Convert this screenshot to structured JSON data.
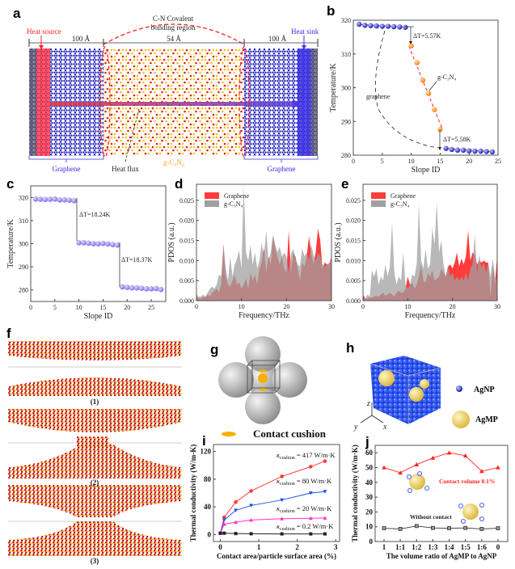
{
  "panels": {
    "a": {
      "label": "a",
      "heat_source": "Heat source",
      "heat_sink": "Heat sink",
      "region_title_1": "C-N Covalent",
      "region_title_2": "bonding region",
      "left_len": "100 Å",
      "mid_len": "54 Å",
      "right_len": "100 Å",
      "graphene_left": "Graphene",
      "graphene_right": "Graphene",
      "heat_flux": "Heat flux",
      "gc3n4": "g-C₃N₄"
    },
    "b": {
      "label": "b",
      "dt1": "ΔT=5.57K",
      "dt2": "ΔT=5.58K",
      "ann_gc3n4": "g-C₃N₄",
      "ann_graphene": "graphene"
    },
    "c": {
      "label": "c",
      "dt1": "ΔT=18.24K",
      "dt2": "ΔT=18.37K"
    },
    "d": {
      "label": "d"
    },
    "e": {
      "label": "e"
    },
    "f": {
      "label": "f",
      "captions": [
        "(1)",
        "(2)",
        "(3)"
      ]
    },
    "g": {
      "label": "g",
      "legend": "Contact cushion"
    },
    "h": {
      "label": "h",
      "legend_np": "AgNP",
      "legend_mp": "AgMP",
      "axis_x": "x",
      "axis_y": "y",
      "axis_z": "z"
    },
    "i": {
      "label": "i",
      "kappa": "κ",
      "sub": "cushion"
    },
    "j": {
      "label": "j",
      "ann_contact": "Contact volume 0.1%",
      "ann_without": "Without contact"
    }
  },
  "colors": {
    "graphene": "#2222cc",
    "gc3n4": "#f5a623",
    "red": "#ff3b3b",
    "gray": "#a0a0a0",
    "blue_series": "#2255ee",
    "magenta": "#ff33cc",
    "black": "#222222"
  },
  "chart_data": [
    {
      "panel": "b",
      "type": "scatter",
      "xlabel": "Slope  ID",
      "ylabel": "Temperature/K",
      "xlim": [
        0,
        25
      ],
      "ylim": [
        280,
        320
      ],
      "xticks": [
        0,
        5,
        10,
        15,
        20,
        25
      ],
      "yticks": [
        280,
        290,
        300,
        310,
        320
      ],
      "series": [
        {
          "x": [
            1,
            2,
            3,
            4,
            5,
            6,
            7,
            8,
            9
          ],
          "y": [
            318.8,
            318.5,
            318.4,
            318.3,
            318.2,
            318.2,
            318.1,
            318.0,
            317.9
          ],
          "color": "#2222cc"
        },
        {
          "x": [
            10,
            11,
            12,
            13,
            14,
            15
          ],
          "y": [
            312.4,
            307.4,
            302.2,
            298.3,
            293.5,
            287.6
          ],
          "color": "#f5a623"
        },
        {
          "x": [
            16,
            17,
            18,
            19,
            20,
            21,
            22,
            23,
            24
          ],
          "y": [
            282.0,
            281.7,
            281.5,
            281.5,
            281.3,
            281.2,
            281.2,
            281.1,
            281.0
          ],
          "color": "#2222cc"
        }
      ]
    },
    {
      "panel": "c",
      "type": "scatter",
      "xlabel": "Slope ID",
      "ylabel": "Temperature/K",
      "xlim": [
        0,
        28
      ],
      "ylim": [
        275,
        325
      ],
      "xticks": [
        0,
        5,
        10,
        15,
        20,
        25
      ],
      "yticks": [
        280,
        290,
        300,
        310,
        320
      ],
      "series": [
        {
          "x": [
            1,
            2,
            3,
            4,
            5,
            6,
            7,
            8,
            9
          ],
          "y": [
            319.3,
            319.2,
            319.1,
            319.2,
            319.3,
            318.9,
            319.0,
            318.8,
            318.6
          ]
        },
        {
          "x": [
            10,
            11,
            12,
            13,
            14,
            15,
            16,
            17,
            18
          ],
          "y": [
            300.4,
            300.4,
            300.2,
            300.0,
            300.0,
            300.1,
            299.9,
            299.6,
            299.4
          ]
        },
        {
          "x": [
            19,
            20,
            21,
            22,
            23,
            24,
            25,
            26,
            27
          ],
          "y": [
            281.3,
            281.1,
            280.9,
            280.9,
            280.7,
            280.5,
            280.5,
            280.6,
            280.2
          ]
        }
      ]
    },
    {
      "panel": "d",
      "type": "area",
      "xlabel": "Frequency/THz",
      "ylabel": "PDOS (a.u.)",
      "xlim": [
        0,
        30
      ],
      "ylim": [
        0,
        0.029
      ],
      "xticks": [
        0,
        10,
        20,
        30
      ],
      "yticks": [
        0.0,
        0.005,
        0.01,
        0.015,
        0.02,
        0.025
      ],
      "legend": "top-left",
      "x_step": 0.5,
      "series": [
        {
          "name": "Graphene",
          "color": "#ff3b3b",
          "values": [
            0.001,
            0.0005,
            0.0005,
            0.001,
            0.0008,
            0.0015,
            0.001,
            0.002,
            0.0025,
            0.003,
            0.002,
            0.004,
            0.014,
            0.006,
            0.004,
            0.0035,
            0.005,
            0.0065,
            0.004,
            0.0045,
            0.003,
            0.004,
            0.0055,
            0.003,
            0.007,
            0.005,
            0.0065,
            0.004,
            0.008,
            0.0095,
            0.013,
            0.007,
            0.011,
            0.009,
            0.016,
            0.013,
            0.011,
            0.009,
            0.011,
            0.008,
            0.007,
            0.0175,
            0.007,
            0.012,
            0.011,
            0.008,
            0.005,
            0.0095,
            0.0085,
            0.011,
            0.016,
            0.012,
            0.009,
            0.012,
            0.018,
            0.015,
            0.008,
            0.0095,
            0.009,
            0.009,
            0.011
          ]
        },
        {
          "name": "g-C₃N₄",
          "color": "#a0a0a0",
          "values": [
            0.0015,
            0.001,
            0.001,
            0.0015,
            0.001,
            0.002,
            0.003,
            0.0035,
            0.003,
            0.004,
            0.0065,
            0.006,
            0.014,
            0.008,
            0.005,
            0.011,
            0.006,
            0.009,
            0.0105,
            0.0125,
            0.008,
            0.029,
            0.012,
            0.01,
            0.014,
            0.009,
            0.012,
            0.008,
            0.01,
            0.0145,
            0.011,
            0.0175,
            0.01,
            0.012,
            0.0165,
            0.014,
            0.012,
            0.0135,
            0.011,
            0.012,
            0.011,
            0.007,
            0.0115,
            0.013,
            0.0105,
            0.009,
            0.0085,
            0.013,
            0.011,
            0.012,
            0.01,
            0.014,
            0.0115,
            0.01,
            0.012,
            0.011,
            0.009,
            0.0085,
            0.009,
            0.0095,
            0.01
          ]
        }
      ]
    },
    {
      "panel": "e",
      "type": "area",
      "xlabel": "Frequency/THz",
      "ylabel": "PDOS (a.u.)",
      "xlim": [
        0,
        30
      ],
      "ylim": [
        0,
        0.029
      ],
      "xticks": [
        0,
        10,
        20,
        30
      ],
      "yticks": [
        0.0,
        0.005,
        0.01,
        0.015,
        0.02,
        0.025
      ],
      "legend": "top-left",
      "x_step": 0.5,
      "series": [
        {
          "name": "Graphene",
          "color": "#ff3b3b",
          "values": [
            0.0015,
            0.0005,
            0.0005,
            0.0008,
            0.0007,
            0.001,
            0.0012,
            0.001,
            0.0015,
            0.002,
            0.0012,
            0.0015,
            0.002,
            0.0015,
            0.001,
            0.002,
            0.0025,
            0.002,
            0.002,
            0.003,
            0.006,
            0.004,
            0.0045,
            0.003,
            0.004,
            0.006,
            0.009,
            0.005,
            0.0045,
            0.007,
            0.006,
            0.0075,
            0.005,
            0.0055,
            0.006,
            0.008,
            0.007,
            0.006,
            0.0085,
            0.009,
            0.008,
            0.0095,
            0.012,
            0.0085,
            0.0105,
            0.009,
            0.011,
            0.0175,
            0.01,
            0.012,
            0.0115,
            0.009,
            0.01,
            0.0095,
            0.01,
            0.0095,
            0.0095,
            0.001,
            0.009,
            0.004,
            0.0115
          ]
        },
        {
          "name": "g-C₃N₄",
          "color": "#a0a0a0",
          "values": [
            0.0005,
            0.0005,
            0.0015,
            0.001,
            0.0075,
            0.006,
            0.008,
            0.004,
            0.006,
            0.005,
            0.009,
            0.006,
            0.0085,
            0.0195,
            0.007,
            0.004,
            0.006,
            0.005,
            0.012,
            0.004,
            0.003,
            0.004,
            0.0065,
            0.006,
            0.009,
            0.024,
            0.01,
            0.008,
            0.013,
            0.008,
            0.009,
            0.018,
            0.014,
            0.0245,
            0.012,
            0.015,
            0.009,
            0.006,
            0.0085,
            0.006,
            0.007,
            0.005,
            0.006,
            0.005,
            0.006,
            0.005,
            0.007,
            0.005,
            0.008,
            0.009,
            0.0165,
            0.007,
            0.0115,
            0.008,
            0.0095,
            0.007,
            0.0095,
            0.006,
            0.0105,
            0.006,
            0.0045
          ]
        }
      ]
    },
    {
      "panel": "i",
      "type": "line",
      "xlabel": "Contact area/particle surface area (%)",
      "ylabel": "Thermal conductivity (W/m-K)",
      "xlim": [
        -0.18,
        3.1
      ],
      "ylim": [
        -10,
        130
      ],
      "xticks": [
        0,
        1,
        2,
        3
      ],
      "yticks": [
        0,
        40,
        80,
        120
      ],
      "x": [
        0,
        0.1,
        0.4,
        0.8,
        1.6,
        2.35,
        2.72
      ],
      "series": [
        {
          "label_value": "= 417 W/m·K",
          "color": "#ff3b3b",
          "marker": "circle",
          "values": [
            2,
            25,
            47,
            63,
            84,
            98,
            106
          ]
        },
        {
          "label_value": "= 80 W/m·K",
          "color": "#2255ee",
          "marker": "triangle-down",
          "values": [
            2,
            21,
            35,
            42,
            50,
            60,
            62
          ]
        },
        {
          "label_value": "= 20 W/m·K",
          "color": "#ff33cc",
          "marker": "triangle-up",
          "values": [
            2,
            15,
            18,
            21,
            23,
            23.5,
            24
          ]
        },
        {
          "label_value": "= 0.2 W/m·K",
          "color": "#222222",
          "marker": "square",
          "values": [
            2,
            2,
            1.5,
            1.2,
            1,
            1,
            1
          ]
        }
      ]
    },
    {
      "panel": "j",
      "type": "line",
      "xlabel": "The volume ratio of AgMP to AgNP",
      "ylabel": "Thermal conductivity (W/m·K)",
      "ylim": [
        0,
        65
      ],
      "categories": [
        "1",
        "1:1",
        "1:2",
        "1:3",
        "1:4",
        "1:5",
        "1:6",
        "0"
      ],
      "yticks": [
        0,
        10,
        20,
        30,
        40,
        50,
        60
      ],
      "series": [
        {
          "name": "Contact volume 0.1%",
          "color": "#ff2222",
          "marker": "triangle-up",
          "values": [
            50,
            46.5,
            52,
            56.5,
            60,
            58,
            47.5,
            50
          ]
        },
        {
          "name": "Without contact",
          "color": "#333333",
          "marker": "square-open",
          "values": [
            9,
            8.5,
            10.5,
            9.2,
            9,
            9.2,
            8.5,
            9
          ]
        }
      ]
    }
  ]
}
